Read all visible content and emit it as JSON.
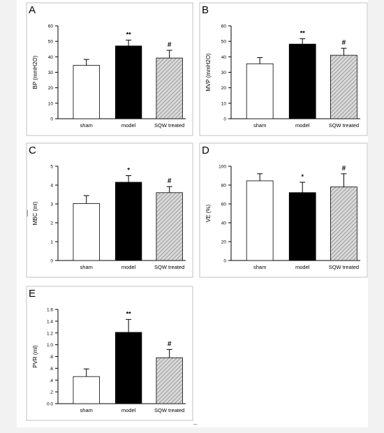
{
  "figure": {
    "categories": [
      "sham",
      "model",
      "SQW treated"
    ],
    "stray_marks": {
      "left": "|",
      "bottom": "_"
    }
  },
  "chart_data": [
    {
      "type": "bar",
      "panel": "A",
      "ylabel": "BP (mmH2O)",
      "categories": [
        "sham",
        "model",
        "SQW treated"
      ],
      "values": [
        34.5,
        47,
        39.2
      ],
      "errors": [
        3.8,
        3.8,
        5
      ],
      "annotations": [
        "",
        "**",
        "#"
      ],
      "ylim": [
        0,
        60
      ],
      "yticks": [
        0,
        10,
        20,
        30,
        40,
        50,
        60
      ],
      "ytick_labels": [
        "0",
        "10",
        "20",
        "30",
        "40",
        "50",
        "60"
      ],
      "bar_styles": [
        "white",
        "black",
        "hatched"
      ]
    },
    {
      "type": "bar",
      "panel": "B",
      "ylabel": "MVP (mmH2O)",
      "categories": [
        "sham",
        "model",
        "SQW treated"
      ],
      "values": [
        35.5,
        48.2,
        41
      ],
      "errors": [
        4,
        3.5,
        4.5
      ],
      "annotations": [
        "",
        "**",
        "#"
      ],
      "ylim": [
        0,
        60
      ],
      "yticks": [
        0,
        10,
        20,
        30,
        40,
        50,
        60
      ],
      "ytick_labels": [
        "0",
        "10",
        "20",
        "30",
        "40",
        "50",
        "60"
      ],
      "bar_styles": [
        "white",
        "black",
        "hatched"
      ]
    },
    {
      "type": "bar",
      "panel": "C",
      "ylabel": "MBC (ml)",
      "categories": [
        "sham",
        "model",
        "SQW treated"
      ],
      "values": [
        3.02,
        4.15,
        3.6
      ],
      "errors": [
        0.42,
        0.35,
        0.32
      ],
      "annotations": [
        "",
        "*",
        "#"
      ],
      "ylim": [
        0,
        5
      ],
      "yticks": [
        0,
        1,
        2,
        3,
        4,
        5
      ],
      "ytick_labels": [
        "0",
        "1",
        "2",
        "3",
        "4",
        "5"
      ],
      "bar_styles": [
        "white",
        "black",
        "hatched"
      ]
    },
    {
      "type": "bar",
      "panel": "D",
      "ylabel": "VE (%)",
      "categories": [
        "sham",
        "model",
        "SQW treated"
      ],
      "values": [
        84.5,
        72,
        78
      ],
      "errors": [
        7.5,
        11,
        14
      ],
      "annotations": [
        "",
        "*",
        "#"
      ],
      "ylim": [
        0,
        100
      ],
      "yticks": [
        0,
        20,
        40,
        60,
        80,
        100
      ],
      "ytick_labels": [
        "0",
        "20",
        "40",
        "60",
        "80",
        "100"
      ],
      "bar_styles": [
        "white",
        "black",
        "hatched"
      ]
    },
    {
      "type": "bar",
      "panel": "E",
      "ylabel": "PVR (ml)",
      "categories": [
        "sham",
        "model",
        "SQW treated"
      ],
      "values": [
        0.46,
        1.21,
        0.78
      ],
      "errors": [
        0.13,
        0.22,
        0.14
      ],
      "annotations": [
        "",
        "**",
        "#"
      ],
      "ylim": [
        0,
        1.6
      ],
      "yticks": [
        0,
        0.2,
        0.4,
        0.6,
        0.8,
        1.0,
        1.2,
        1.4,
        1.6
      ],
      "ytick_labels": [
        "0.0",
        ".2",
        ".4",
        ".6",
        ".8",
        "1.0",
        "1.2",
        "1.4",
        "1.6"
      ],
      "bar_styles": [
        "white",
        "black",
        "hatched"
      ]
    }
  ],
  "colors": {
    "bar_fill_black": "#000000",
    "bar_fill_white": "#ffffff",
    "hatch_bg": "#d9d9d9",
    "hatch_line": "#8c8c8c",
    "axis": "#000000",
    "panel_border": "#b3b3b3",
    "frame_bg": "#f2f2f2"
  }
}
